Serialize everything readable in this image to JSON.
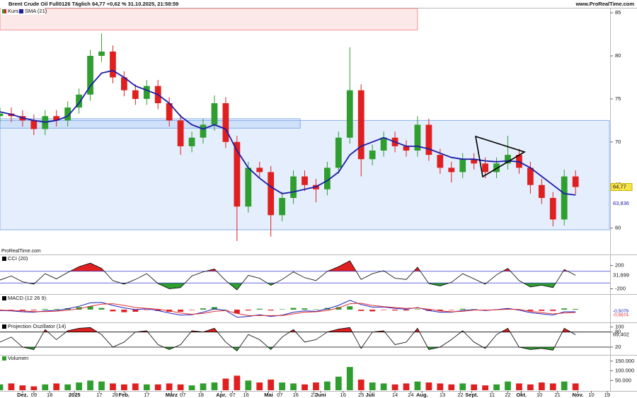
{
  "site": "www.ProRealTime.com",
  "brand": "ProRealTime.com",
  "chart_data": [
    {
      "type": "candlestick",
      "title": "Brent Crude Oil Full0126 Täglich 64,77 +0,62 % 31.10.2025, 21:58:59",
      "price_name": "Kurs",
      "up_color": "#2f9e2f",
      "down_color": "#e02020",
      "x": [
        0,
        5,
        10,
        15,
        20,
        25,
        30,
        35,
        40,
        45,
        50,
        55,
        60,
        65,
        70,
        75,
        80,
        85,
        90,
        95,
        100,
        105,
        110,
        115,
        120,
        125,
        130,
        135,
        140,
        145,
        150,
        155,
        160,
        165,
        170,
        175,
        180,
        185,
        190,
        195,
        200,
        205,
        210,
        215,
        220,
        225,
        230,
        235,
        240,
        245,
        250,
        255
      ],
      "open": [
        73.0,
        73.3,
        73,
        72.5,
        71.5,
        73,
        72.5,
        74,
        75.5,
        80,
        80.5,
        77.5,
        76,
        75,
        76.5,
        74.5,
        72.5,
        69.5,
        70.5,
        72,
        74.5,
        70,
        62.5,
        67,
        66.5,
        61.5,
        63.5,
        66,
        65,
        64.5,
        67,
        70.5,
        76,
        68,
        69,
        70.5,
        69.5,
        69,
        72,
        68.5,
        67,
        66.5,
        68,
        67.5,
        66.5,
        67.5,
        68.5,
        67,
        65,
        63.5,
        61,
        66
      ],
      "high": [
        74.0,
        74.0,
        73.7,
        73.2,
        73.7,
        73.7,
        74.7,
        76.2,
        80.7,
        82.6,
        81.2,
        78.2,
        76.7,
        77.2,
        77.2,
        75.2,
        73.2,
        71.2,
        72.7,
        75.4,
        75.2,
        70.7,
        67.7,
        67.7,
        67.2,
        64.2,
        66.7,
        66.7,
        65.7,
        67.7,
        71.2,
        81,
        76.7,
        69.7,
        71.2,
        71.2,
        70.2,
        73,
        72.7,
        69.2,
        67.7,
        68.7,
        68.7,
        68.2,
        68.2,
        70.7,
        69.2,
        67.7,
        65.7,
        64.2,
        66.8,
        66.7
      ],
      "low": [
        72.3,
        72.3,
        71.8,
        70.8,
        70.8,
        71.8,
        71.8,
        73.3,
        74.8,
        79.3,
        76.8,
        75.3,
        74.3,
        74.3,
        73.8,
        71.8,
        68.5,
        68.8,
        69.8,
        71.3,
        69.3,
        58.5,
        61.8,
        65.8,
        59,
        60.8,
        62.8,
        64.3,
        63,
        63.8,
        66.3,
        69.8,
        66,
        67.3,
        68.3,
        68.8,
        68.3,
        68.3,
        67.8,
        66.3,
        65.3,
        65.8,
        66.8,
        65.8,
        65.8,
        66.8,
        66.3,
        64,
        62.8,
        60.2,
        60.3,
        63.9
      ],
      "close": [
        73.3,
        73,
        72.5,
        71.5,
        73,
        72.5,
        74,
        75.5,
        80,
        80.5,
        77.5,
        76,
        75,
        76.5,
        74.5,
        72.5,
        69.5,
        70.5,
        72,
        74.5,
        70,
        62.5,
        67,
        66.5,
        61.5,
        63.5,
        66,
        65,
        64.5,
        67,
        70.5,
        76,
        68,
        69,
        70.5,
        69.5,
        69,
        72,
        68.5,
        67,
        66.5,
        68,
        67.5,
        66.5,
        67.5,
        68.5,
        67,
        65,
        63.5,
        61,
        66,
        64.77
      ],
      "series": [
        {
          "name": "SMA (21)",
          "color": "#1c1ca8",
          "values": [
            73.5,
            73.2,
            72.8,
            72.5,
            72.3,
            72.5,
            73,
            74.5,
            76.5,
            78,
            78.3,
            77.5,
            76.5,
            76,
            75.5,
            74.5,
            73,
            72,
            71.5,
            72,
            71.5,
            69,
            67,
            65.8,
            64.8,
            64,
            64.2,
            64.5,
            64.8,
            65.5,
            66.5,
            68.5,
            69.5,
            70,
            70.5,
            70,
            69.5,
            69.5,
            69.2,
            68.7,
            68.2,
            68,
            68,
            67.8,
            67.7,
            67.8,
            67.7,
            67,
            66,
            65,
            64,
            63.836
          ]
        }
      ],
      "last_labels": [
        "64,77",
        "63,836"
      ],
      "zones": [
        {
          "from": 83,
          "to": 85.5,
          "x": [
            0,
            185
          ],
          "color": "#f08080"
        },
        {
          "from": 59.8,
          "to": 72.5,
          "x": [
            0,
            270
          ],
          "color": "#6fa0ee"
        },
        {
          "from": 71.6,
          "to": 72.7,
          "x": [
            0,
            133
          ],
          "color": "#6fa0ee"
        }
      ],
      "ylim": [
        58,
        85.5
      ],
      "yticks": [
        60,
        65,
        70,
        75,
        80,
        85
      ]
    },
    {
      "type": "oscillator",
      "x": [
        0,
        5,
        10,
        15,
        20,
        25,
        30,
        35,
        40,
        45,
        50,
        55,
        60,
        65,
        70,
        75,
        80,
        85,
        90,
        95,
        100,
        105,
        110,
        115,
        120,
        125,
        130,
        135,
        140,
        145,
        150,
        155,
        160,
        165,
        170,
        175,
        180,
        185,
        190,
        195,
        200,
        205,
        210,
        215,
        220,
        225,
        230,
        235,
        240,
        245,
        250,
        255
      ],
      "series": [
        {
          "name": "CCI (20)",
          "color": "#000000",
          "values": [
            -50,
            20,
            -80,
            -120,
            60,
            -30,
            80,
            180,
            240,
            150,
            -60,
            -120,
            -40,
            60,
            -110,
            -200,
            -180,
            20,
            90,
            140,
            -60,
            -220,
            30,
            -20,
            -140,
            -40,
            90,
            -10,
            -60,
            100,
            180,
            280,
            -40,
            60,
            110,
            -20,
            -40,
            170,
            -110,
            -150,
            -90,
            60,
            -30,
            -120,
            40,
            150,
            -60,
            -170,
            -140,
            -180,
            130,
            31.699
          ]
        }
      ],
      "levels": [
        100,
        -100
      ],
      "level_color": "#3a3ad0",
      "fill_colors": [
        "#e02020",
        "#2f9e2f"
      ],
      "last_label": "31,699",
      "ylim": [
        -340,
        340
      ],
      "yticks": [
        200,
        -200
      ]
    },
    {
      "type": "macd",
      "x": [
        0,
        5,
        10,
        15,
        20,
        25,
        30,
        35,
        40,
        45,
        50,
        55,
        60,
        65,
        70,
        75,
        80,
        85,
        90,
        95,
        100,
        105,
        110,
        115,
        120,
        125,
        130,
        135,
        140,
        145,
        150,
        155,
        160,
        165,
        170,
        175,
        180,
        185,
        190,
        195,
        200,
        205,
        210,
        215,
        220,
        225,
        230,
        235,
        240,
        245,
        250,
        255
      ],
      "series": [
        {
          "name": "MACD (12 26 9)",
          "color": "#2020c0",
          "values": [
            -0.2,
            -0.3,
            -0.5,
            -0.6,
            -0.3,
            -0.2,
            0.2,
            0.8,
            1.6,
            1.7,
            1.0,
            0.4,
            0.0,
            0.2,
            -0.2,
            -0.8,
            -1.3,
            -1.2,
            -0.6,
            0.2,
            -0.2,
            -1.8,
            -1.6,
            -1.2,
            -1.6,
            -1.3,
            -0.6,
            -0.3,
            -0.4,
            0.2,
            1.0,
            2.2,
            1.2,
            0.6,
            0.6,
            0.3,
            0.1,
            0.5,
            -0.2,
            -0.6,
            -0.6,
            -0.2,
            0.0,
            -0.2,
            0.0,
            0.3,
            -0.1,
            -0.7,
            -1.0,
            -1.3,
            -0.5,
            -0.5079
          ]
        },
        {
          "color": "#e03030",
          "values": [
            -0.1,
            -0.2,
            -0.3,
            -0.45,
            -0.45,
            -0.35,
            -0.15,
            0.2,
            0.8,
            1.3,
            1.4,
            1.0,
            0.5,
            0.3,
            0.1,
            -0.3,
            -0.8,
            -1.1,
            -0.9,
            -0.4,
            -0.2,
            -0.9,
            -1.4,
            -1.4,
            -1.4,
            -1.4,
            -1.0,
            -0.6,
            -0.5,
            -0.2,
            0.4,
            1.4,
            1.5,
            1.0,
            0.7,
            0.5,
            0.3,
            0.4,
            0.1,
            -0.3,
            -0.5,
            -0.4,
            -0.1,
            -0.1,
            -0.05,
            0.1,
            0.05,
            -0.4,
            -0.7,
            -1.0,
            -0.8,
            -0.6674
          ]
        }
      ],
      "histogram": [
        -0.1,
        -0.1,
        -0.2,
        -0.15,
        0.15,
        0.15,
        0.35,
        0.6,
        0.8,
        0.4,
        -0.4,
        -0.6,
        -0.5,
        -0.1,
        -0.3,
        -0.5,
        -0.5,
        -0.1,
        0.3,
        0.6,
        0,
        -0.9,
        -0.2,
        0.2,
        -0.2,
        0.1,
        0.4,
        0.3,
        0.1,
        0.4,
        0.6,
        0.8,
        -0.3,
        -0.4,
        -0.1,
        -0.2,
        -0.2,
        0.1,
        -0.3,
        -0.3,
        -0.1,
        0.2,
        0.1,
        -0.1,
        0.05,
        0.2,
        -0.15,
        -0.3,
        -0.3,
        -0.3,
        0.3,
        0.16
      ],
      "hist_colors": [
        "#2f9e2f",
        "#e02020"
      ],
      "last_labels": [
        "-0,5079",
        "-0,6674"
      ],
      "ylim": [
        -3,
        3
      ]
    },
    {
      "type": "oscillator",
      "x": [
        0,
        5,
        10,
        15,
        20,
        25,
        30,
        35,
        40,
        45,
        50,
        55,
        60,
        65,
        70,
        75,
        80,
        85,
        90,
        95,
        100,
        105,
        110,
        115,
        120,
        125,
        130,
        135,
        140,
        145,
        150,
        155,
        160,
        165,
        170,
        175,
        180,
        185,
        190,
        195,
        200,
        205,
        210,
        215,
        220,
        225,
        230,
        235,
        240,
        245,
        250,
        255
      ],
      "series": [
        {
          "name": "Projection Oszillator (14)",
          "color": "#000000",
          "values": [
            40,
            60,
            20,
            10,
            90,
            50,
            85,
            95,
            98,
            70,
            20,
            40,
            80,
            85,
            30,
            10,
            30,
            85,
            80,
            95,
            40,
            5,
            70,
            50,
            10,
            60,
            90,
            40,
            50,
            80,
            92,
            98,
            15,
            80,
            85,
            30,
            40,
            95,
            10,
            20,
            50,
            85,
            40,
            15,
            70,
            95,
            20,
            10,
            15,
            8,
            95,
            69.402
          ]
        }
      ],
      "levels": [
        80,
        20
      ],
      "level_color": "#000000",
      "fill_colors": [
        "#e02020",
        "#2f9e2f"
      ],
      "last_label": "69,402",
      "ylim": [
        -11,
        113
      ],
      "yticks": [
        100,
        80,
        20
      ]
    },
    {
      "type": "bar",
      "x": [
        0,
        5,
        10,
        15,
        20,
        25,
        30,
        35,
        40,
        45,
        50,
        55,
        60,
        65,
        70,
        75,
        80,
        85,
        90,
        95,
        100,
        105,
        110,
        115,
        120,
        125,
        130,
        135,
        140,
        145,
        150,
        155,
        160,
        165,
        170,
        175,
        180,
        185,
        190,
        195,
        200,
        205,
        210,
        215,
        220,
        225,
        230,
        235,
        240,
        245,
        250,
        255
      ],
      "series": [
        {
          "name": "Volumen",
          "color": "#2f9e2f",
          "values": [
            30000,
            35000,
            25000,
            20000,
            30000,
            35000,
            30000,
            40000,
            50000,
            45000,
            35000,
            30000,
            35000,
            30000,
            30000,
            35000,
            30000,
            25000,
            35000,
            40000,
            60000,
            75000,
            50000,
            40000,
            55000,
            40000,
            35000,
            30000,
            40000,
            45000,
            70000,
            120000,
            55000,
            40000,
            35000,
            30000,
            35000,
            45000,
            40000,
            35000,
            30000,
            35000,
            30000,
            25000,
            30000,
            45000,
            35000,
            30000,
            40000,
            35000,
            45000,
            35000
          ]
        }
      ],
      "ylim": [
        0,
        175000
      ],
      "yticks": [
        {
          "value": 150000,
          "label": "150.000"
        },
        {
          "value": 100000,
          "label": "100.000"
        },
        {
          "value": 50000,
          "label": "50.000"
        }
      ],
      "xlim": [
        0,
        270
      ],
      "xticks": [
        {
          "value": 10,
          "label": "Dez."
        },
        {
          "value": 15,
          "label": "09"
        },
        {
          "value": 22,
          "label": "18"
        },
        {
          "value": 33,
          "label": "2025"
        },
        {
          "value": 44,
          "label": "17"
        },
        {
          "value": 51,
          "label": "28"
        },
        {
          "value": 55,
          "label": "Feb."
        },
        {
          "value": 65,
          "label": "17"
        },
        {
          "value": 76,
          "label": "März"
        },
        {
          "value": 81,
          "label": "07"
        },
        {
          "value": 89,
          "label": "18"
        },
        {
          "value": 98,
          "label": "Apr."
        },
        {
          "value": 103,
          "label": "07"
        },
        {
          "value": 109,
          "label": "16"
        },
        {
          "value": 119,
          "label": "Mai"
        },
        {
          "value": 124,
          "label": "07"
        },
        {
          "value": 131,
          "label": "16"
        },
        {
          "value": 139,
          "label": "27"
        },
        {
          "value": 142,
          "label": "Juni"
        },
        {
          "value": 152,
          "label": "16"
        },
        {
          "value": 160,
          "label": "25"
        },
        {
          "value": 164,
          "label": "Juli"
        },
        {
          "value": 175,
          "label": "14"
        },
        {
          "value": 182,
          "label": "24"
        },
        {
          "value": 187,
          "label": "Aug."
        },
        {
          "value": 196,
          "label": "13"
        },
        {
          "value": 204,
          "label": "22"
        },
        {
          "value": 209,
          "label": "Sept."
        },
        {
          "value": 218,
          "label": "11"
        },
        {
          "value": 225,
          "label": "22"
        },
        {
          "value": 231,
          "label": "Okt."
        },
        {
          "value": 239,
          "label": "10"
        },
        {
          "value": 247,
          "label": "21"
        },
        {
          "value": 256,
          "label": "Nov."
        },
        {
          "value": 262,
          "label": "10"
        },
        {
          "value": 269,
          "label": "19"
        }
      ]
    }
  ]
}
